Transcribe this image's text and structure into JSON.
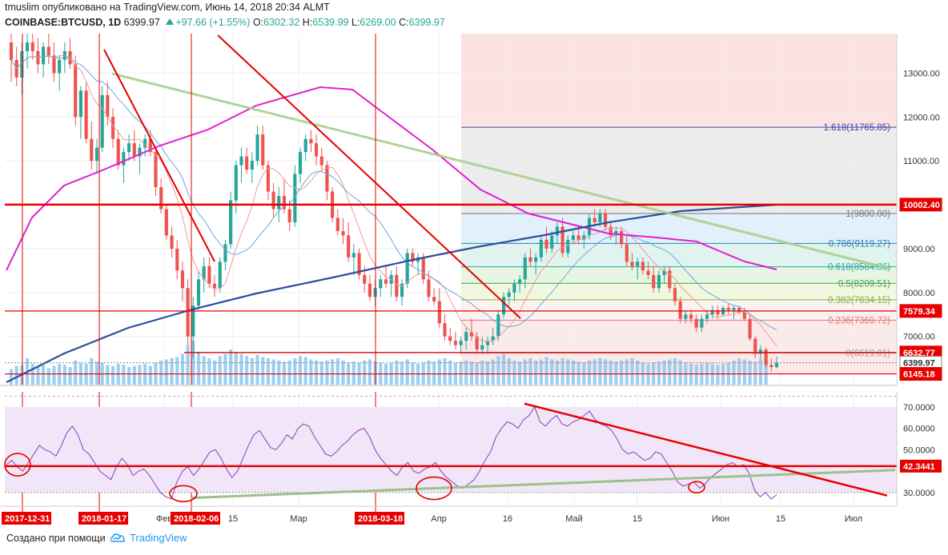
{
  "header": {
    "author": "tmuslim",
    "published": "опубликовано на TradingView.com, Июнь 14, 2018 20:34 ALMT",
    "symbol": "COINBASE:BTCUSD, 1D",
    "price": "6399.97",
    "change": "+97.66 (+1.55%)",
    "open_label": "O:",
    "open": "6302.32",
    "high_label": "H:",
    "high": "6539.99",
    "low_label": "L:",
    "low": "6269.00",
    "close_label": "C:",
    "close": "6399.97"
  },
  "footer": {
    "created_with": "Создано при помощи",
    "brand": "TradingView"
  },
  "colors": {
    "up": "#26a69a",
    "down": "#ef5350",
    "red_line": "#e60000",
    "ma200": "#2e4f9b",
    "ma_magenta": "#e020d0",
    "trend_green": "#a8d08d",
    "rsi": "#8e3bb8",
    "volume": "#8cc7ef"
  },
  "chart_data": [
    {
      "type": "candlestick",
      "title": "",
      "ylim": [
        5900,
        13900
      ],
      "y_ticks": [
        "13000.00",
        "12000.00",
        "11000.00",
        "10000.00",
        "9000.00",
        "8000.00",
        "7000.00"
      ],
      "x_ticks": [
        "Фев",
        "15",
        "Мар",
        "Апр",
        "16",
        "Май",
        "15",
        "Июн",
        "15",
        "Июл"
      ],
      "x_date_flags": [
        "2017-12-31",
        "2018-01-17",
        "2018-02-06",
        "2018-03-18"
      ],
      "price_flags": [
        {
          "label": "10002.40",
          "value": 10002.4,
          "color": "#e60000"
        },
        {
          "label": "7579.34",
          "value": 7579.34,
          "color": "#e60000"
        },
        {
          "label": "6632.77",
          "value": 6632.77,
          "color": "#e60000"
        },
        {
          "label": "6399.97",
          "value": 6399.97,
          "color": "#ffffff"
        },
        {
          "label": "6145.18",
          "value": 6145.18,
          "color": "#e60000"
        }
      ],
      "fibonacci": {
        "range": [
          "2018-04-06",
          "2018-06-14"
        ],
        "levels": [
          {
            "label": "1.618(11765.85)",
            "value": 11765.85,
            "color": "#3949ab"
          },
          {
            "label": "1(9800.00)",
            "value": 9800.0,
            "color": "#777777"
          },
          {
            "label": "0.786(9119.27)",
            "value": 9119.27,
            "color": "#2a7fb8"
          },
          {
            "label": "0.618(8584.86)",
            "value": 8584.86,
            "color": "#26a69a"
          },
          {
            "label": "0.5(8209.51)",
            "value": 8209.51,
            "color": "#43a047"
          },
          {
            "label": "0.382(7834.15)",
            "value": 7834.15,
            "color": "#7cb342"
          },
          {
            "label": "0.236(7369.72)",
            "value": 7369.72,
            "color": "#e57373"
          },
          {
            "label": "0(6619.01)",
            "value": 6619.01,
            "color": "#9e9e9e"
          }
        ]
      },
      "ohlc_approx": [
        [
          13700,
          13900,
          12800,
          13300
        ],
        [
          13300,
          13600,
          12700,
          12900
        ],
        [
          12900,
          13700,
          12500,
          13500
        ],
        [
          13500,
          13900,
          13100,
          13700
        ],
        [
          13700,
          13900,
          13300,
          13500
        ],
        [
          13500,
          13800,
          13000,
          13200
        ],
        [
          13200,
          13700,
          12900,
          13600
        ],
        [
          13600,
          13900,
          13200,
          13400
        ],
        [
          13400,
          13700,
          12800,
          13000
        ],
        [
          13000,
          13400,
          12600,
          13300
        ],
        [
          13300,
          13700,
          13000,
          13500
        ],
        [
          13500,
          13800,
          13100,
          13200
        ],
        [
          13200,
          13400,
          11800,
          12000
        ],
        [
          12000,
          12700,
          11500,
          12600
        ],
        [
          12600,
          12800,
          11400,
          11500
        ],
        [
          11500,
          11900,
          10800,
          11000
        ],
        [
          11000,
          11500,
          10700,
          11300
        ],
        [
          11300,
          12700,
          11200,
          12500
        ],
        [
          12500,
          12800,
          11800,
          12000
        ],
        [
          12000,
          12200,
          11300,
          11500
        ],
        [
          11500,
          11700,
          10800,
          10900
        ],
        [
          10900,
          11300,
          10500,
          11200
        ],
        [
          11200,
          11600,
          11000,
          11400
        ],
        [
          11400,
          11700,
          11000,
          11100
        ],
        [
          11100,
          11400,
          10700,
          11300
        ],
        [
          11300,
          11600,
          11100,
          11500
        ],
        [
          11500,
          11700,
          11100,
          11200
        ],
        [
          11200,
          11300,
          10200,
          10400
        ],
        [
          10400,
          10600,
          9800,
          9900
        ],
        [
          9900,
          10000,
          9200,
          9300
        ],
        [
          9300,
          9500,
          8800,
          9000
        ],
        [
          9000,
          9200,
          8300,
          8500
        ],
        [
          8500,
          8700,
          7800,
          8100
        ],
        [
          8100,
          8300,
          6800,
          7000
        ],
        [
          7000,
          7900,
          6500,
          7700
        ],
        [
          7700,
          8500,
          7600,
          8300
        ],
        [
          8300,
          8800,
          8000,
          8600
        ],
        [
          8600,
          8800,
          8100,
          8200
        ],
        [
          8200,
          8400,
          7900,
          8100
        ],
        [
          8100,
          8800,
          8000,
          8700
        ],
        [
          8700,
          9200,
          8500,
          9100
        ],
        [
          9100,
          10300,
          9000,
          10100
        ],
        [
          10100,
          11000,
          9800,
          10900
        ],
        [
          10900,
          11300,
          10500,
          11100
        ],
        [
          11100,
          11300,
          10700,
          10800
        ],
        [
          10800,
          11200,
          10500,
          11000
        ],
        [
          11000,
          11800,
          10900,
          11600
        ],
        [
          11600,
          11800,
          10800,
          10900
        ],
        [
          10900,
          11000,
          10100,
          10300
        ],
        [
          10300,
          10500,
          9700,
          9900
        ],
        [
          9900,
          10400,
          9600,
          10200
        ],
        [
          10200,
          10600,
          9800,
          9900
        ],
        [
          9900,
          10100,
          9400,
          9600
        ],
        [
          9600,
          10900,
          9500,
          10700
        ],
        [
          10700,
          11300,
          10500,
          11200
        ],
        [
          11200,
          11600,
          11000,
          11500
        ],
        [
          11500,
          11700,
          11200,
          11400
        ],
        [
          11400,
          11600,
          10900,
          11100
        ],
        [
          11100,
          11300,
          10800,
          10900
        ],
        [
          10900,
          11000,
          10100,
          10300
        ],
        [
          10300,
          10400,
          9600,
          9700
        ],
        [
          9700,
          9900,
          9300,
          9400
        ],
        [
          9400,
          9700,
          9100,
          9300
        ],
        [
          9300,
          9600,
          8700,
          8800
        ],
        [
          8800,
          9100,
          8400,
          8900
        ],
        [
          8900,
          9000,
          8300,
          8400
        ],
        [
          8400,
          8600,
          8000,
          8200
        ],
        [
          8200,
          8400,
          7800,
          7900
        ],
        [
          7900,
          8300,
          7700,
          8100
        ],
        [
          8100,
          8400,
          7900,
          8300
        ],
        [
          8300,
          8600,
          8100,
          8200
        ],
        [
          8200,
          8500,
          7900,
          8400
        ],
        [
          8400,
          8600,
          7800,
          7900
        ],
        [
          7900,
          8300,
          7700,
          8200
        ],
        [
          8200,
          9000,
          8100,
          8900
        ],
        [
          8900,
          9000,
          8600,
          8700
        ],
        [
          8700,
          8900,
          8400,
          8800
        ],
        [
          8800,
          8900,
          8200,
          8300
        ],
        [
          8300,
          8500,
          7800,
          7900
        ],
        [
          7900,
          8100,
          7700,
          7800
        ],
        [
          7800,
          8100,
          7200,
          7300
        ],
        [
          7300,
          7500,
          6900,
          7000
        ],
        [
          7000,
          7200,
          6800,
          6900
        ],
        [
          6900,
          7100,
          6700,
          6800
        ],
        [
          6800,
          7000,
          6600,
          6900
        ],
        [
          6900,
          7200,
          6700,
          7100
        ],
        [
          7100,
          7400,
          6900,
          7000
        ],
        [
          7000,
          7100,
          6600,
          6700
        ],
        [
          6700,
          7000,
          6600,
          6800
        ],
        [
          6800,
          7000,
          6600,
          6900
        ],
        [
          6900,
          7200,
          6800,
          7000
        ],
        [
          7000,
          7600,
          6900,
          7500
        ],
        [
          7500,
          8000,
          7400,
          7900
        ],
        [
          7900,
          8100,
          7700,
          8000
        ],
        [
          8000,
          8300,
          7800,
          8200
        ],
        [
          8200,
          8400,
          8000,
          8300
        ],
        [
          8300,
          8900,
          8100,
          8800
        ],
        [
          8800,
          9000,
          8600,
          8700
        ],
        [
          8700,
          8900,
          8400,
          8800
        ],
        [
          8800,
          9300,
          8700,
          9200
        ],
        [
          9200,
          9500,
          8900,
          9000
        ],
        [
          9000,
          9400,
          8900,
          9300
        ],
        [
          9300,
          9600,
          9100,
          9500
        ],
        [
          9500,
          9700,
          8800,
          8900
        ],
        [
          8900,
          9300,
          8800,
          9200
        ],
        [
          9200,
          9400,
          9100,
          9300
        ],
        [
          9300,
          9500,
          9100,
          9200
        ],
        [
          9200,
          9400,
          9000,
          9300
        ],
        [
          9300,
          9800,
          9200,
          9700
        ],
        [
          9700,
          9900,
          9500,
          9600
        ],
        [
          9600,
          9900,
          9500,
          9800
        ],
        [
          9800,
          9900,
          9400,
          9500
        ],
        [
          9500,
          9600,
          9200,
          9300
        ],
        [
          9300,
          9500,
          9100,
          9400
        ],
        [
          9400,
          9500,
          9000,
          9100
        ],
        [
          9100,
          9300,
          8600,
          8700
        ],
        [
          8700,
          8900,
          8500,
          8600
        ],
        [
          8600,
          8800,
          8300,
          8700
        ],
        [
          8700,
          8800,
          8400,
          8500
        ],
        [
          8500,
          8700,
          8300,
          8400
        ],
        [
          8400,
          8600,
          8000,
          8100
        ],
        [
          8100,
          8500,
          8000,
          8400
        ],
        [
          8400,
          8600,
          8200,
          8500
        ],
        [
          8500,
          8600,
          8000,
          8100
        ],
        [
          8100,
          8200,
          7700,
          7800
        ],
        [
          7800,
          7900,
          7300,
          7400
        ],
        [
          7400,
          7600,
          7300,
          7500
        ],
        [
          7500,
          7600,
          7300,
          7400
        ],
        [
          7400,
          7500,
          7100,
          7200
        ],
        [
          7200,
          7500,
          7100,
          7400
        ],
        [
          7400,
          7600,
          7300,
          7500
        ],
        [
          7500,
          7700,
          7400,
          7600
        ],
        [
          7600,
          7700,
          7400,
          7500
        ],
        [
          7500,
          7700,
          7450,
          7650
        ],
        [
          7650,
          7750,
          7500,
          7600
        ],
        [
          7600,
          7700,
          7400,
          7650
        ],
        [
          7650,
          7700,
          7500,
          7550
        ],
        [
          7550,
          7650,
          7350,
          7400
        ],
        [
          7400,
          7500,
          6900,
          6950
        ],
        [
          6950,
          7000,
          6500,
          6600
        ],
        [
          6600,
          6800,
          6500,
          6700
        ],
        [
          6700,
          6750,
          6300,
          6350
        ],
        [
          6350,
          6500,
          6200,
          6300
        ],
        [
          6300,
          6540,
          6270,
          6400
        ]
      ],
      "volume_approx": [
        70,
        85,
        90,
        120,
        95,
        80,
        90,
        75,
        85,
        95,
        90,
        80,
        110,
        100,
        95,
        120,
        105,
        100,
        90,
        85,
        95,
        90,
        80,
        85,
        90,
        95,
        85,
        100,
        110,
        115,
        120,
        125,
        140,
        180,
        200,
        150,
        130,
        120,
        110,
        130,
        140,
        160,
        150,
        140,
        130,
        120,
        135,
        125,
        120,
        115,
        110,
        105,
        110,
        120,
        130,
        125,
        115,
        110,
        105,
        110,
        115,
        120,
        110,
        100,
        105,
        100,
        110,
        115,
        105,
        100,
        95,
        100,
        110,
        105,
        115,
        100,
        95,
        100,
        110,
        105,
        115,
        120,
        110,
        100,
        105,
        110,
        105,
        100,
        110,
        105,
        115,
        130,
        140,
        120,
        110,
        105,
        115,
        120,
        110,
        115,
        125,
        115,
        110,
        120,
        115,
        110,
        105,
        100,
        110,
        115,
        120,
        115,
        110,
        105,
        110,
        115,
        120,
        110,
        100,
        95,
        100,
        105,
        110,
        115,
        120,
        110,
        100,
        95,
        90,
        95,
        100,
        95,
        90,
        95,
        100,
        110,
        120,
        115,
        110,
        105,
        120,
        130
      ]
    },
    {
      "type": "line",
      "title": "",
      "ylim": [
        24,
        77
      ],
      "y_ticks": [
        "70.0000",
        "60.0000",
        "50.0000",
        "30.0000"
      ],
      "level_flag": {
        "label": "42.3441",
        "value": 42.3441
      },
      "rsi_approx": [
        43,
        45,
        42,
        40,
        44,
        48,
        52,
        50,
        49,
        47,
        52,
        58,
        61,
        57,
        50,
        48,
        44,
        40,
        38,
        36,
        42,
        46,
        43,
        38,
        40,
        41,
        38,
        34,
        30,
        28,
        27,
        35,
        40,
        42,
        38,
        41,
        45,
        49,
        50,
        46,
        41,
        37,
        40,
        46,
        52,
        57,
        59,
        55,
        51,
        50,
        53,
        57,
        55,
        60,
        62,
        61,
        56,
        52,
        48,
        47,
        49,
        52,
        54,
        57,
        59,
        60,
        56,
        50,
        46,
        43,
        40,
        38,
        42,
        44,
        40,
        39,
        41,
        42,
        44,
        40,
        37,
        35,
        33,
        32,
        34,
        36,
        40,
        45,
        49,
        56,
        60,
        63,
        62,
        60,
        64,
        66,
        70,
        63,
        61,
        64,
        66,
        62,
        61,
        63,
        64,
        66,
        68,
        64,
        62,
        61,
        59,
        55,
        50,
        48,
        49,
        47,
        45,
        46,
        49,
        48,
        44,
        40,
        35,
        33,
        34,
        35,
        32,
        34,
        37,
        39,
        41,
        43,
        44,
        42,
        43,
        39,
        31,
        28,
        30,
        27,
        29
      ]
    }
  ]
}
